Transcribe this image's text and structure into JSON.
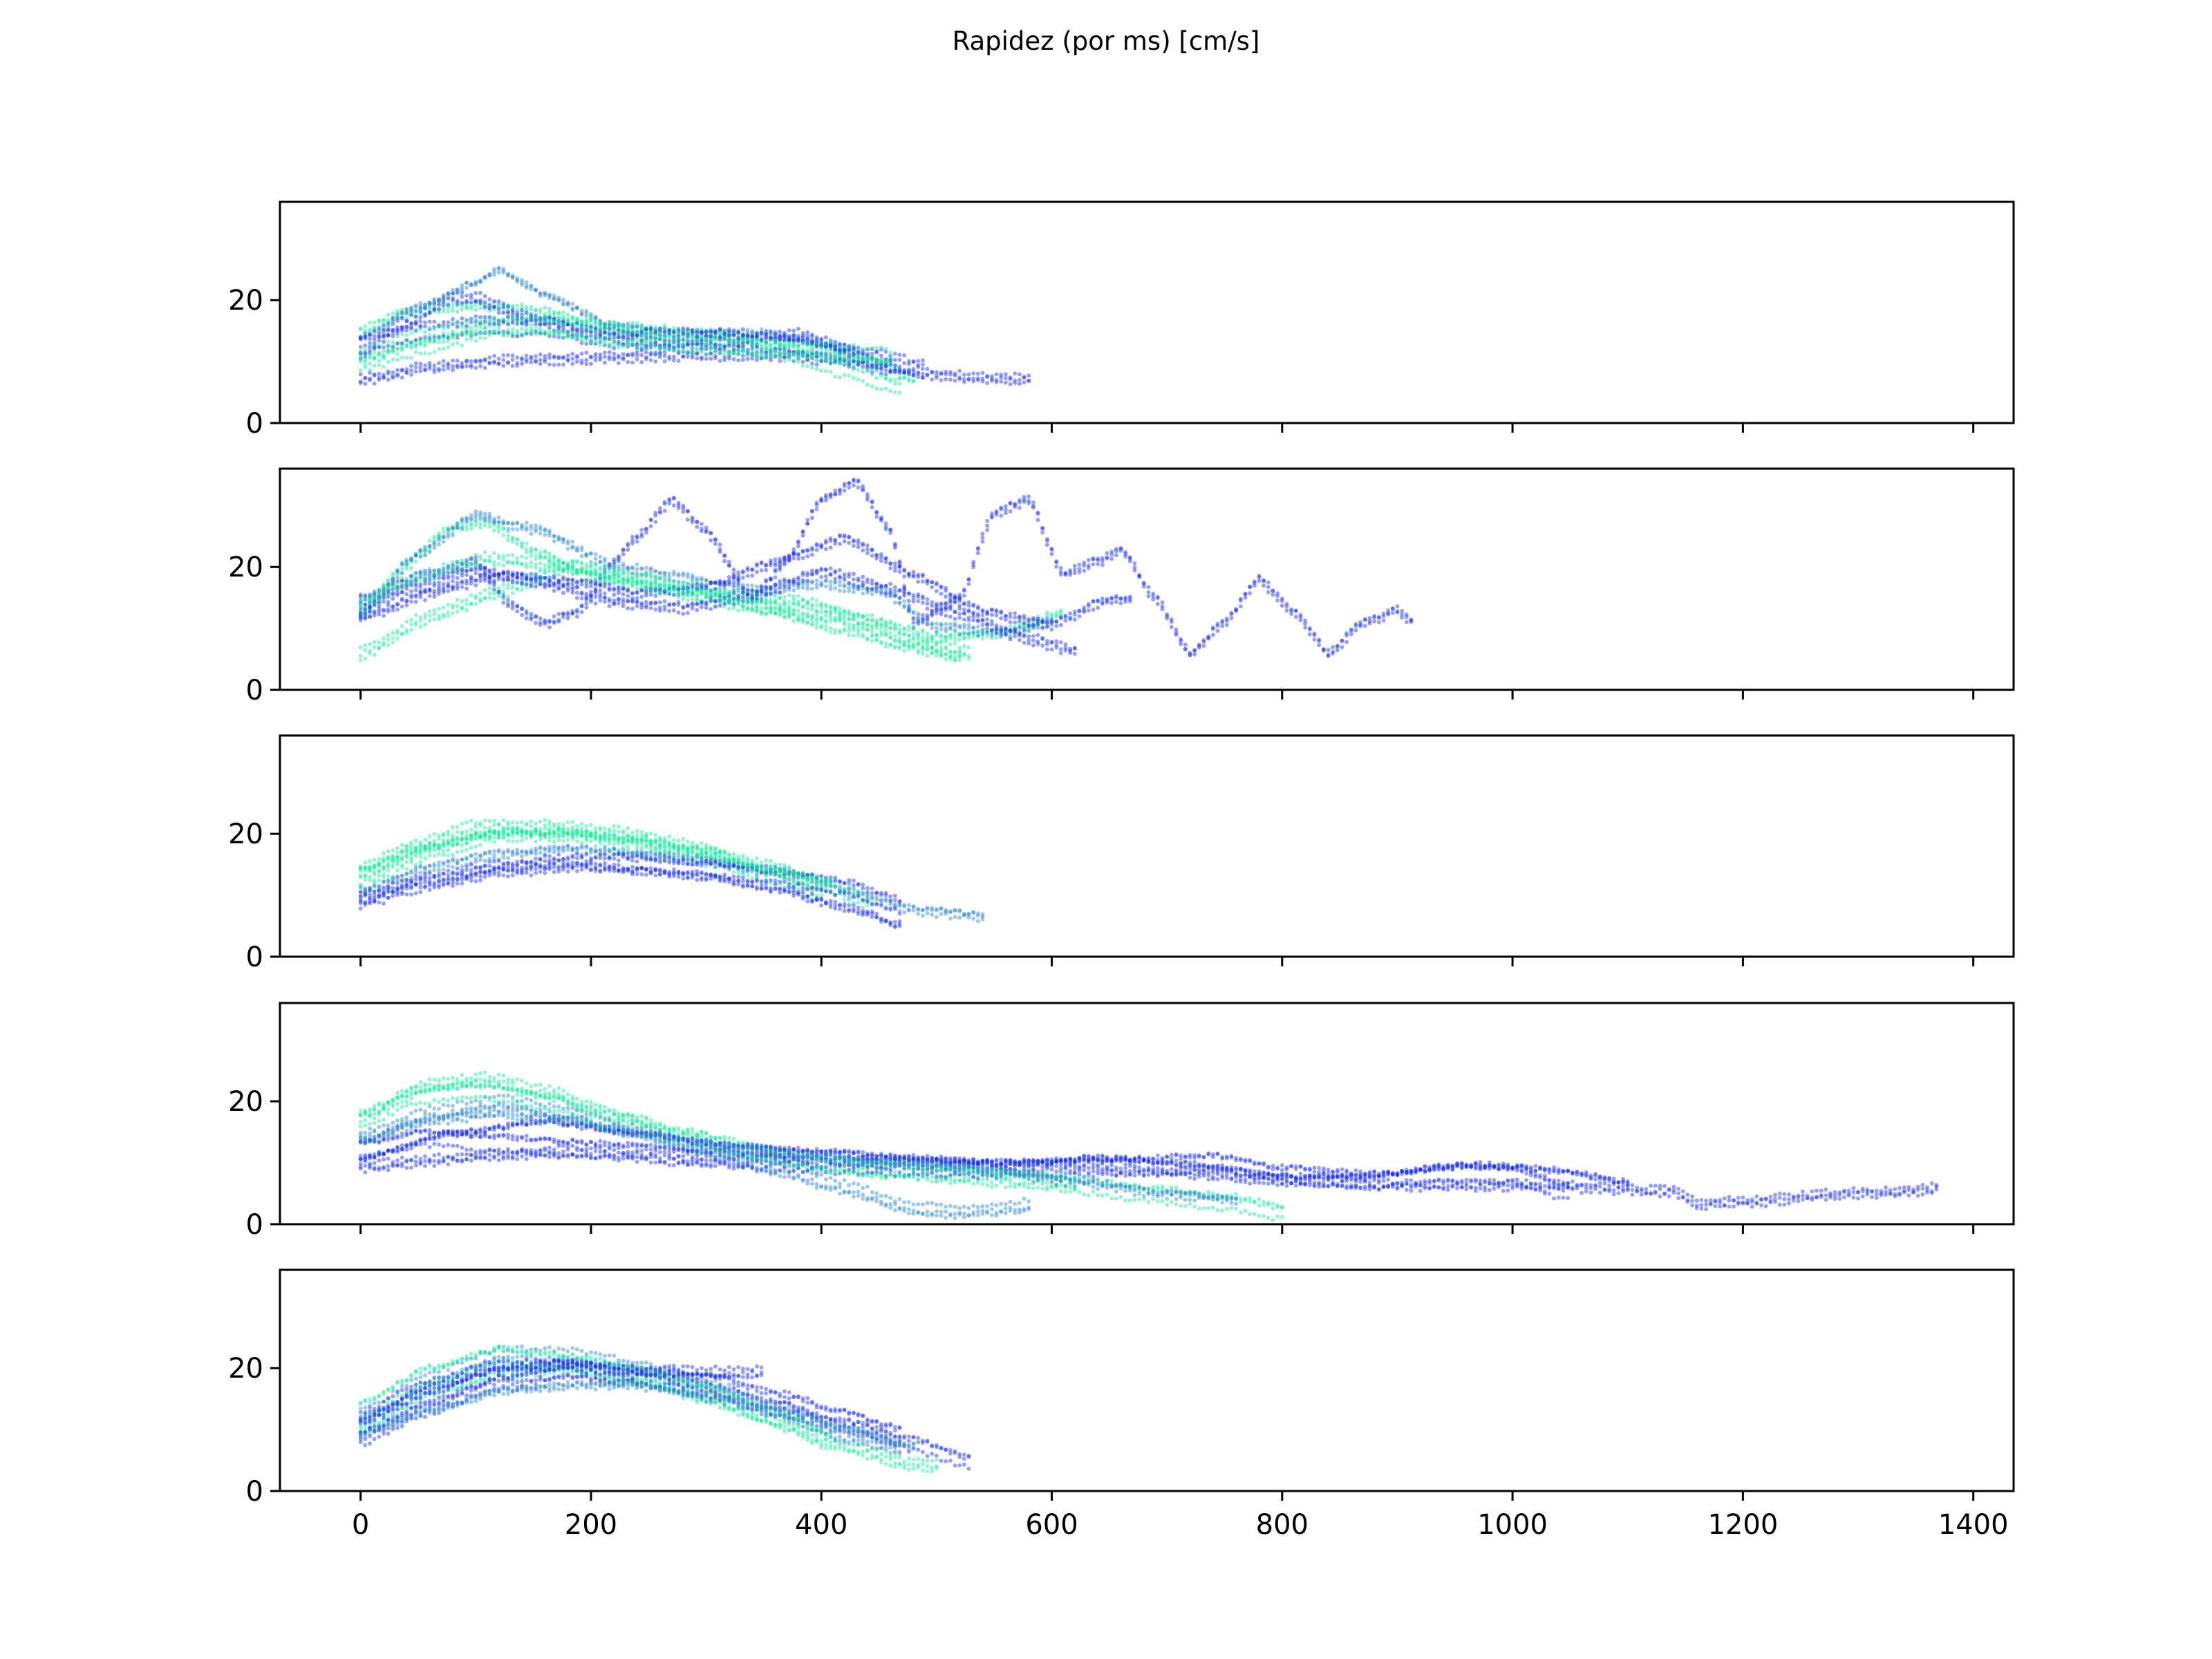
{
  "chart_data": {
    "type": "scatter",
    "title": "Rapidez (por ms) [cm/s]",
    "xlabel": "",
    "ylabel": "",
    "layout": "5 vertically stacked panels sharing the x axis",
    "xlim": [
      -70,
      1435
    ],
    "ylim": [
      0,
      36
    ],
    "grid": false,
    "legend": "none",
    "x_ticks": [
      0,
      200,
      400,
      600,
      800,
      1000,
      1200,
      1400
    ],
    "x_tick_labels": [
      "0",
      "200",
      "400",
      "600",
      "800",
      "1000",
      "1200",
      "1400"
    ],
    "y_ticks": [
      0,
      20
    ],
    "y_tick_labels": [
      "0",
      "20"
    ],
    "colors": {
      "blue": "#1a2ee6",
      "mid": "#2e88cc",
      "green": "#1fe6a0"
    },
    "panels": [
      {
        "series": [
          {
            "color": "green",
            "x": [
              0,
              40,
              80,
              120,
              160,
              200,
              250,
              300,
              350,
              400,
              450,
              480
            ],
            "y": [
              15,
              18,
              19,
              19,
              18,
              16,
              14,
              13.5,
              13,
              12,
              10,
              7
            ]
          },
          {
            "color": "blue",
            "x": [
              0,
              40,
              80,
              100,
              140,
              200,
              260,
              320,
              380,
              430
            ],
            "y": [
              12,
              17,
              21,
              21,
              18,
              15,
              13.5,
              14,
              15,
              12
            ]
          },
          {
            "color": "mid",
            "x": [
              0,
              50,
              100,
              120,
              160,
              220,
              280,
              340,
              400,
              460
            ],
            "y": [
              13,
              18,
              22,
              24,
              20,
              15,
              14,
              14,
              12,
              9
            ]
          },
          {
            "color": "blue",
            "x": [
              0,
              60,
              120,
              200,
              280,
              360,
              420,
              460,
              520,
              580
            ],
            "y": [
              8,
              10,
              11,
              11.5,
              12,
              12,
              11,
              9.5,
              8.5,
              8
            ]
          },
          {
            "color": "green",
            "x": [
              0,
              60,
              120,
              180,
              240,
              300,
              360,
              420,
              470
            ],
            "y": [
              10,
              13,
              16,
              16,
              15,
              14,
              12,
              9,
              6
            ]
          },
          {
            "color": "blue",
            "x": [
              0,
              50,
              100,
              160,
              220,
              300,
              380,
              440,
              490
            ],
            "y": [
              13,
              15,
              16,
              16,
              14,
              14,
              13,
              11,
              9
            ]
          },
          {
            "color": "green",
            "x": [
              0,
              50,
              100,
              160,
              220,
              280,
              340,
              400,
              460
            ],
            "y": [
              11,
              14,
              16,
              16,
              14,
              13,
              12.5,
              12,
              11
            ]
          }
        ]
      },
      {
        "series": [
          {
            "color": "blue",
            "x": [
              0,
              60,
              100,
              130,
              160,
              190,
              220,
              240,
              270,
              300,
              340,
              370,
              400,
              430,
              460,
              480,
              520,
              550,
              580,
              610,
              640,
              660,
              690,
              720,
              750,
              780,
              810,
              840,
              870,
              900,
              915
            ],
            "y": [
              14,
              18,
              20,
              13,
              10,
              12,
              20,
              24,
              30,
              25,
              14,
              20,
              30,
              33,
              25,
              10,
              14,
              28,
              30,
              18,
              20,
              22,
              14,
              5,
              10,
              17,
              12,
              5,
              10,
              12,
              10
            ]
          },
          {
            "color": "green",
            "x": [
              0,
              40,
              80,
              110,
              150,
              200,
              260,
              320,
              380,
              440,
              500,
              560,
              610
            ],
            "y": [
              12,
              20,
              26,
              27,
              22,
              18,
              16,
              15,
              14,
              11,
              8,
              9,
              12
            ]
          },
          {
            "color": "mid",
            "x": [
              0,
              50,
              100,
              150,
              220,
              280,
              340,
              400,
              450,
              500,
              560,
              600
            ],
            "y": [
              12,
              22,
              28,
              26,
              20,
              18,
              16,
              17,
              16,
              10,
              9,
              11
            ]
          },
          {
            "color": "blue",
            "x": [
              0,
              60,
              120,
              180,
              240,
              300,
              360,
              420,
              480,
              540,
              600,
              650,
              670
            ],
            "y": [
              11,
              15,
              18,
              17,
              15,
              16,
              20,
              24,
              18,
              12,
              10,
              14,
              14
            ]
          },
          {
            "color": "green",
            "x": [
              0,
              60,
              120,
              180,
              240,
              300,
              360,
              420,
              480,
              530
            ],
            "y": [
              6,
              12,
              16,
              20,
              18,
              15,
              13,
              12,
              8,
              6
            ]
          },
          {
            "color": "blue",
            "x": [
              0,
              40,
              100,
              160,
              220,
              280,
              340,
              400,
              460,
              520,
              580,
              620
            ],
            "y": [
              14,
              17,
              20,
              18,
              15,
              14,
              16,
              20,
              17,
              13,
              9,
              7
            ]
          },
          {
            "color": "green",
            "x": [
              0,
              50,
              110,
              170,
              230,
              290,
              350,
              410,
              470,
              520
            ],
            "y": [
              15,
              19,
              22,
              21,
              19,
              17,
              14,
              11,
              8,
              6
            ]
          }
        ]
      },
      {
        "series": [
          {
            "color": "green",
            "x": [
              0,
              60,
              120,
              180,
              240,
              300,
              360,
              400
            ],
            "y": [
              12,
              17,
              20,
              20,
              18,
              16,
              13,
              10
            ]
          },
          {
            "color": "blue",
            "x": [
              0,
              60,
              120,
              180,
              240,
              300,
              360,
              420,
              470
            ],
            "y": [
              10,
              13,
              15,
              16,
              15,
              14,
              12,
              9,
              6
            ]
          },
          {
            "color": "mid",
            "x": [
              0,
              60,
              120,
              180,
              240,
              300,
              360,
              420,
              480,
              540
            ],
            "y": [
              11,
              15,
              17,
              18,
              17,
              16,
              14,
              11,
              8,
              7
            ]
          },
          {
            "color": "green",
            "x": [
              0,
              50,
              100,
              160,
              220,
              280,
              340,
              400,
              440
            ],
            "y": [
              14,
              18,
              21,
              21,
              20,
              18,
              15,
              12,
              9
            ]
          },
          {
            "color": "blue",
            "x": [
              0,
              60,
              120,
              180,
              240,
              300,
              360,
              420,
              470
            ],
            "y": [
              9,
              12,
              14,
              15,
              15,
              14,
              13,
              11,
              8
            ]
          },
          {
            "color": "green",
            "x": [
              0,
              60,
              120,
              180,
              240,
              300,
              360,
              410
            ],
            "y": [
              13,
              17,
              19,
              19,
              18,
              16,
              13,
              11
            ]
          }
        ]
      },
      {
        "series": [
          {
            "color": "green",
            "x": [
              0,
              60,
              110,
              160,
              220,
              280,
              340,
              400,
              460,
              520,
              580,
              620
            ],
            "y": [
              18,
              23,
              24,
              22,
              18,
              15,
              12,
              10,
              9,
              8.5,
              8,
              7
            ]
          },
          {
            "color": "blue",
            "x": [
              0,
              60,
              120,
              180,
              240,
              300,
              360,
              420,
              480,
              540,
              600,
              660,
              720,
              780,
              840,
              900,
              960,
              1020,
              1080,
              1140,
              1160,
              1220,
              1280,
              1340,
              1370
            ],
            "y": [
              9,
              10,
              11,
              11.5,
              11,
              10,
              10,
              9.5,
              9.5,
              9,
              9,
              8.5,
              8,
              7,
              6.5,
              6,
              6,
              6,
              5.5,
              5,
              3,
              3.5,
              4.5,
              5,
              5.5
            ]
          },
          {
            "color": "mid",
            "x": [
              0,
              60,
              120,
              180,
              240,
              300,
              360,
              420,
              480,
              520,
              580
            ],
            "y": [
              14,
              18,
              20,
              18,
              15,
              12,
              9,
              6,
              2.5,
              2,
              3
            ]
          },
          {
            "color": "blue",
            "x": [
              0,
              60,
              120,
              200,
              280,
              360,
              440,
              520,
              600,
              680,
              740,
              800,
              880,
              940,
              1000,
              1050
            ],
            "y": [
              12,
              14,
              13,
              12,
              11,
              10,
              9.5,
              9,
              9,
              9.5,
              10,
              8,
              7,
              8,
              8,
              5
            ]
          },
          {
            "color": "green",
            "x": [
              0,
              50,
              100,
              160,
              220,
              280,
              340,
              400,
              460,
              520,
              600,
              680,
              760,
              800
            ],
            "y": [
              17,
              21,
              22,
              20,
              17,
              14,
              12,
              10,
              9,
              8,
              7,
              5,
              3.5,
              2
            ]
          },
          {
            "color": "blue",
            "x": [
              0,
              80,
              160,
              240,
              320,
              400,
              480,
              560,
              640,
              720,
              800,
              880,
              960,
              1040,
              1100
            ],
            "y": [
              10,
              14,
              16,
              14,
              12,
              11,
              10,
              9,
              10,
              9,
              7,
              7,
              9,
              8,
              6
            ]
          },
          {
            "color": "mid",
            "x": [
              0,
              60,
              120,
              180,
              240,
              300,
              380,
              460,
              540,
              620,
              700,
              760
            ],
            "y": [
              13,
              16,
              17,
              16,
              14,
              12,
              10,
              9,
              8,
              6,
              4,
              3
            ]
          }
        ]
      },
      {
        "series": [
          {
            "color": "green",
            "x": [
              0,
              60,
              120,
              180,
              240,
              300,
              360,
              420,
              480,
              500
            ],
            "y": [
              11,
              17,
              20,
              21,
              19,
              16,
              12,
              8,
              5,
              5
            ]
          },
          {
            "color": "blue",
            "x": [
              0,
              60,
              120,
              180,
              240,
              300,
              360,
              420,
              480,
              530
            ],
            "y": [
              9,
              14,
              18,
              20,
              19,
              17,
              14,
              11,
              8,
              5
            ]
          },
          {
            "color": "mid",
            "x": [
              0,
              60,
              120,
              180,
              240,
              300,
              360,
              420,
              470
            ],
            "y": [
              12,
              18,
              22,
              22,
              20,
              17,
              13,
              9,
              7
            ]
          },
          {
            "color": "blue",
            "x": [
              0,
              60,
              120,
              180,
              240,
              300,
              360,
              420,
              470
            ],
            "y": [
              10,
              15,
              19,
              20,
              19,
              18,
              15,
              12,
              9
            ]
          },
          {
            "color": "green",
            "x": [
              0,
              60,
              120,
              180,
              240,
              300,
              360,
              410
            ],
            "y": [
              13,
              19,
              22,
              21,
              19,
              16,
              12,
              8
            ]
          },
          {
            "color": "blue",
            "x": [
              0,
              60,
              120,
              180,
              240,
              300,
              350
            ],
            "y": [
              12,
              17,
              20,
              20,
              19,
              19,
              19
            ]
          },
          {
            "color": "mid",
            "x": [
              0,
              60,
              120,
              180,
              240,
              300,
              360,
              420,
              480
            ],
            "y": [
              9,
              13,
              16,
              17,
              17,
              15,
              13,
              10,
              7
            ]
          }
        ]
      }
    ]
  }
}
